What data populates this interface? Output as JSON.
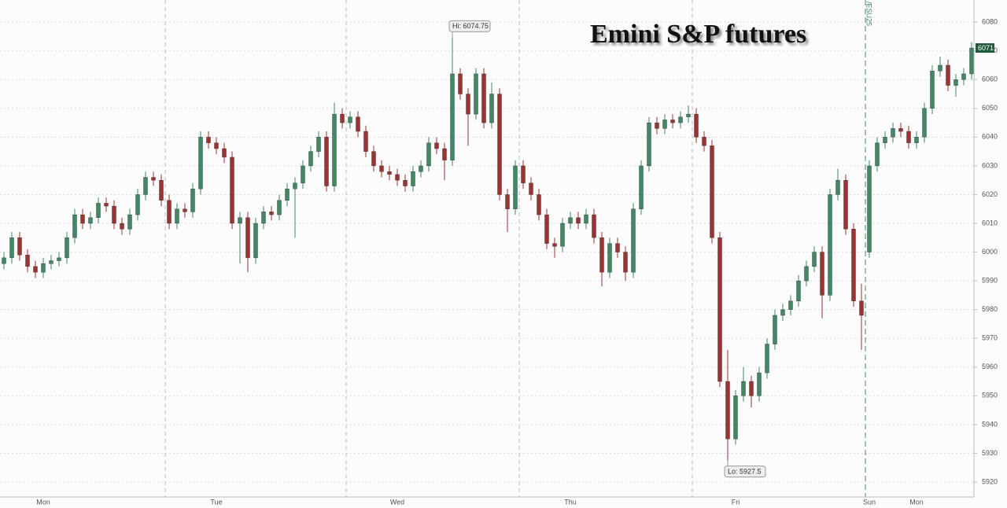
{
  "chart_data": {
    "type": "candlestick",
    "title": "Emini S&P futures",
    "up_color": "#3d8a63",
    "down_color": "#a3302f",
    "ylim": [
      5914.8,
      6087.7
    ],
    "yticks": [
      5920,
      5930,
      5940,
      5950,
      5960,
      5970,
      5980,
      5990,
      6000,
      6010,
      6020,
      6030,
      6040,
      6050,
      6060,
      6070,
      6080
    ],
    "grid": true,
    "days": [
      {
        "label": "Mon",
        "index": 5
      },
      {
        "label": "Tue",
        "index": 27
      },
      {
        "label": "Wed",
        "index": 50
      },
      {
        "label": "Thu",
        "index": 72
      },
      {
        "label": "Fri",
        "index": 93
      },
      {
        "label": "Sun",
        "index": 110
      },
      {
        "label": "Mon",
        "index": 116
      }
    ],
    "day_starts": [
      21,
      44,
      66,
      88
    ],
    "roll": {
      "index": 110,
      "label": "/ESU25"
    },
    "annotations": [
      {
        "text": "Hi: 6074.75",
        "candle": 57,
        "at": "high"
      },
      {
        "text": "Lo: 5927.5",
        "candle": 92,
        "at": "low"
      }
    ],
    "candles": [
      [
        5996,
        6000,
        5994,
        5998
      ],
      [
        5998,
        6007,
        5996,
        6005
      ],
      [
        6005,
        6007,
        5997,
        5999
      ],
      [
        5999,
        6001,
        5993,
        5995
      ],
      [
        5995,
        5997,
        5991,
        5993
      ],
      [
        5993,
        5998,
        5991,
        5996
      ],
      [
        5996,
        5999,
        5994,
        5997
      ],
      [
        5997,
        6000,
        5995,
        5998
      ],
      [
        5998,
        6007,
        5996,
        6005
      ],
      [
        6005,
        6015,
        6003,
        6013
      ],
      [
        6013,
        6015,
        6008,
        6010
      ],
      [
        6010,
        6014,
        6008,
        6012
      ],
      [
        6012,
        6019,
        6010,
        6017
      ],
      [
        6017,
        6019,
        6014,
        6016
      ],
      [
        6016,
        6018,
        6008,
        6010
      ],
      [
        6010,
        6012,
        6006,
        6008
      ],
      [
        6008,
        6015,
        6006,
        6013
      ],
      [
        6013,
        6022,
        6011,
        6020
      ],
      [
        6020,
        6028,
        6018,
        6026
      ],
      [
        6026,
        6028,
        6023,
        6025
      ],
      [
        6025,
        6027,
        6016,
        6018
      ],
      [
        6018,
        6020,
        6008,
        6010
      ],
      [
        6010,
        6017,
        6008,
        6015
      ],
      [
        6015,
        6017,
        6012,
        6014
      ],
      [
        6014,
        6024,
        6012,
        6022
      ],
      [
        6022,
        6042,
        6020,
        6040
      ],
      [
        6040,
        6042,
        6036,
        6038
      ],
      [
        6038,
        6040,
        6034,
        6036
      ],
      [
        6036,
        6038,
        6031,
        6033
      ],
      [
        6033,
        6035,
        6008,
        6010
      ],
      [
        6010,
        6014,
        5996,
        6012
      ],
      [
        6012,
        6014,
        5993,
        5998
      ],
      [
        5998,
        6012,
        5996,
        6010
      ],
      [
        6010,
        6016,
        6008,
        6014
      ],
      [
        6014,
        6016,
        6011,
        6013
      ],
      [
        6013,
        6020,
        6011,
        6018
      ],
      [
        6018,
        6024,
        6016,
        6022
      ],
      [
        6022,
        6026,
        6005,
        6024
      ],
      [
        6024,
        6032,
        6022,
        6030
      ],
      [
        6030,
        6037,
        6028,
        6035
      ],
      [
        6035,
        6042,
        6033,
        6040
      ],
      [
        6040,
        6042,
        6021,
        6023
      ],
      [
        6023,
        6052,
        6021,
        6048
      ],
      [
        6048,
        6050,
        6043,
        6045
      ],
      [
        6045,
        6049,
        6043,
        6047
      ],
      [
        6047,
        6049,
        6040,
        6042
      ],
      [
        6042,
        6044,
        6033,
        6035
      ],
      [
        6035,
        6037,
        6028,
        6030
      ],
      [
        6030,
        6032,
        6026,
        6028
      ],
      [
        6028,
        6030,
        6025,
        6027
      ],
      [
        6027,
        6029,
        6023,
        6025
      ],
      [
        6025,
        6027,
        6021,
        6023
      ],
      [
        6023,
        6030,
        6021,
        6028
      ],
      [
        6028,
        6032,
        6026,
        6030
      ],
      [
        6030,
        6040,
        6028,
        6038
      ],
      [
        6038,
        6040,
        6034,
        6036
      ],
      [
        6036,
        6038,
        6025,
        6032
      ],
      [
        6032,
        6074.75,
        6030,
        6062
      ],
      [
        6062,
        6064,
        6053,
        6055
      ],
      [
        6055,
        6057,
        6037,
        6048
      ],
      [
        6048,
        6064,
        6046,
        6062
      ],
      [
        6062,
        6064,
        6043,
        6045
      ],
      [
        6045,
        6059,
        6043,
        6055
      ],
      [
        6055,
        6057,
        6018,
        6020
      ],
      [
        6020,
        6022,
        6007,
        6015
      ],
      [
        6015,
        6032,
        6013,
        6030
      ],
      [
        6030,
        6032,
        6022,
        6024
      ],
      [
        6024,
        6026,
        6018,
        6020
      ],
      [
        6020,
        6022,
        6011,
        6013
      ],
      [
        6013,
        6015,
        6001,
        6003
      ],
      [
        6003,
        6005,
        5998,
        6002
      ],
      [
        6002,
        6012,
        6000,
        6010
      ],
      [
        6010,
        6014,
        6008,
        6012
      ],
      [
        6012,
        6014,
        6008,
        6010
      ],
      [
        6010,
        6015,
        6008,
        6013
      ],
      [
        6013,
        6015,
        6003,
        6005
      ],
      [
        6005,
        6007,
        5988,
        5993
      ],
      [
        5993,
        6005,
        5991,
        6003
      ],
      [
        6003,
        6005,
        5998,
        6000
      ],
      [
        6000,
        6002,
        5990,
        5993
      ],
      [
        5993,
        6017,
        5991,
        6015
      ],
      [
        6015,
        6032,
        6013,
        6030
      ],
      [
        6030,
        6047,
        6028,
        6045
      ],
      [
        6045,
        6047,
        6041,
        6043
      ],
      [
        6043,
        6048,
        6041,
        6046
      ],
      [
        6046,
        6048,
        6043,
        6045
      ],
      [
        6045,
        6049,
        6043,
        6047
      ],
      [
        6047,
        6051,
        6045,
        6048
      ],
      [
        6048,
        6050,
        6038,
        6040
      ],
      [
        6040,
        6042,
        6035,
        6037
      ],
      [
        6037,
        6039,
        6003,
        6005
      ],
      [
        6005,
        6007,
        5953,
        5955
      ],
      [
        5955,
        5966,
        5927.5,
        5935
      ],
      [
        5935,
        5952,
        5933,
        5950
      ],
      [
        5950,
        5960,
        5948,
        5955
      ],
      [
        5955,
        5957,
        5946,
        5950
      ],
      [
        5950,
        5960,
        5948,
        5958
      ],
      [
        5958,
        5970,
        5956,
        5968
      ],
      [
        5968,
        5980,
        5966,
        5978
      ],
      [
        5978,
        5982,
        5976,
        5980
      ],
      [
        5980,
        5985,
        5978,
        5983
      ],
      [
        5983,
        5992,
        5981,
        5990
      ],
      [
        5990,
        5997,
        5988,
        5995
      ],
      [
        5995,
        6002,
        5993,
        6000
      ],
      [
        6000,
        6002,
        5977,
        5985
      ],
      [
        5985,
        6022,
        5983,
        6020
      ],
      [
        6020,
        6029,
        6018,
        6025
      ],
      [
        6025,
        6027,
        6006,
        6008
      ],
      [
        6008,
        6010,
        5981,
        5983
      ],
      [
        5983,
        5989,
        5966,
        5978
      ],
      [
        6000,
        6032,
        5998,
        6030
      ],
      [
        6030,
        6040,
        6028,
        6038
      ],
      [
        6038,
        6042,
        6036,
        6040
      ],
      [
        6040,
        6045,
        6038,
        6043
      ],
      [
        6043,
        6045,
        6040,
        6042
      ],
      [
        6042,
        6044,
        6036,
        6038
      ],
      [
        6038,
        6042,
        6036,
        6040
      ],
      [
        6040,
        6052,
        6038,
        6050
      ],
      [
        6050,
        6065,
        6048,
        6063
      ],
      [
        6063,
        6068,
        6061,
        6065
      ],
      [
        6065,
        6067,
        6056,
        6058
      ],
      [
        6058,
        6062,
        6054,
        6060
      ],
      [
        6060,
        6064,
        6058,
        6062
      ],
      [
        6062,
        6073,
        6060,
        6071
      ]
    ]
  }
}
